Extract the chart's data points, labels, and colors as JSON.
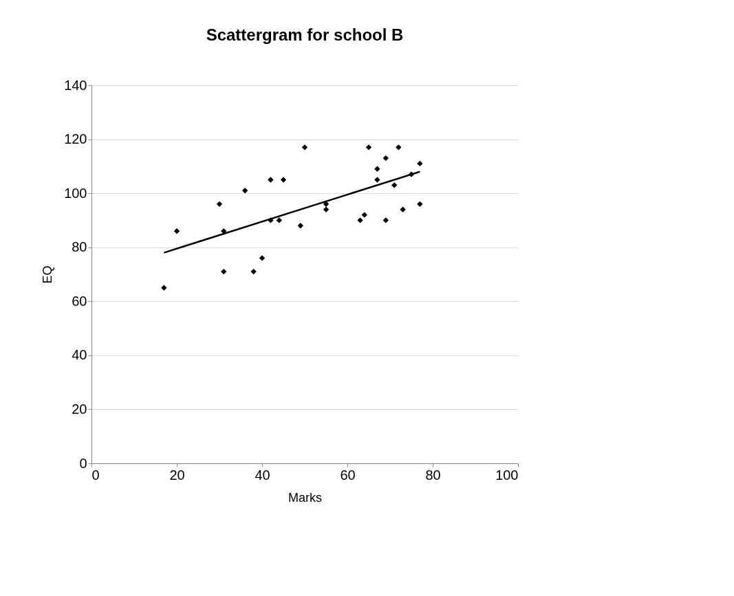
{
  "chart_data": {
    "type": "scatter",
    "title": "Scattergram for school B",
    "xlabel": "Marks",
    "ylabel": "EQ",
    "xlim": [
      0,
      100
    ],
    "xticks": [
      0,
      20,
      40,
      60,
      80,
      100
    ],
    "ylim": [
      0,
      140
    ],
    "yticks": [
      0,
      20,
      40,
      60,
      80,
      100,
      120,
      140
    ],
    "grid": "y",
    "marker": "diamond",
    "series": [
      {
        "color": "#000000",
        "x": [
          17,
          20,
          30,
          31,
          31,
          36,
          38,
          40,
          42,
          42,
          44,
          45,
          49,
          50,
          55,
          55,
          63,
          64,
          65,
          67,
          67,
          69,
          69,
          71,
          72,
          73,
          75,
          77,
          77
        ],
        "values": [
          65,
          86,
          96,
          86,
          71,
          101,
          71,
          76,
          105,
          90,
          90,
          105,
          88,
          117,
          96,
          94,
          90,
          92,
          117,
          109,
          105,
          113,
          90,
          103,
          117,
          94,
          107,
          111,
          96
        ]
      },
      {
        "type": "line",
        "color": "#000000",
        "line_style": "solid",
        "marker": "none",
        "x": [
          17,
          77
        ],
        "values": [
          78,
          108
        ]
      }
    ]
  }
}
